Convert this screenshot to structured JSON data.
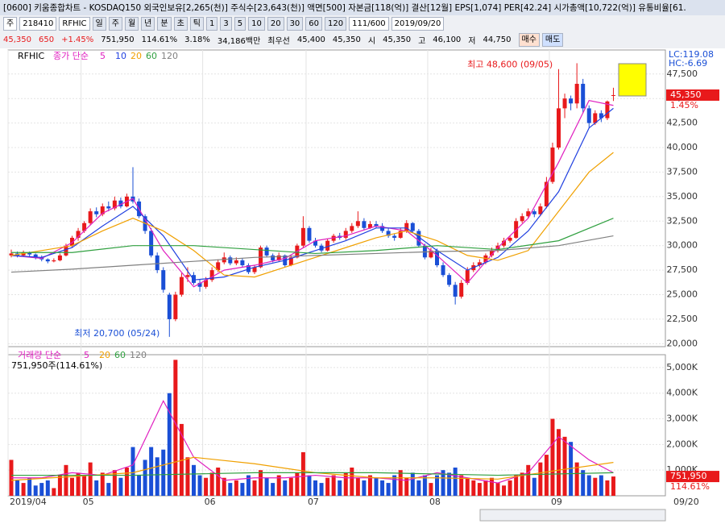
{
  "header": {
    "title": "[0600] 키움종합차트 - KOSDAQ150 외국인보유[2,265(천)] 주식수[23,643(천)] 액면[500] 자본금[118(억)] 결산[12월] EPS[1,074] PER[42.24] 시가총액[10,722(억)] 유통비율[61.",
    "toolbar": [
      "주",
      "218410",
      "RFHIC",
      "일",
      "주",
      "월",
      "년",
      "분",
      "초",
      "틱",
      "1",
      "3",
      "5",
      "10",
      "20",
      "30",
      "60",
      "120",
      "111/600",
      "2019/09/20"
    ],
    "quote": [
      "45,350",
      "650",
      "+1.45%",
      "751,950",
      "114.61%",
      "3.18%",
      "34,186백만",
      "최우선",
      "45,400",
      "45,350",
      "시",
      "45,350",
      "고",
      "46,100",
      "저",
      "44,750"
    ],
    "buttons": [
      "매수",
      "매도"
    ]
  },
  "chart_data": {
    "type": "candlestick",
    "title": "RFHIC",
    "ma_label": "종가 단순",
    "open": [
      29000,
      29200,
      29000,
      29300,
      29100,
      28800,
      28600,
      28400,
      28500,
      29000,
      30000,
      30800,
      31500,
      32300,
      33500,
      33200,
      34000,
      33800,
      34600,
      34000,
      35000,
      34500,
      33000,
      31500,
      29000,
      27500,
      25000,
      22500,
      25000,
      26800,
      27000,
      26200,
      25800,
      26500,
      27500,
      28300,
      28800,
      28200,
      28500,
      28000,
      27300,
      27800,
      29800,
      29000,
      28500,
      29000,
      28000,
      28800,
      30000,
      31800,
      30500,
      30000,
      29500,
      30500,
      31000,
      30800,
      31500,
      32000,
      32500,
      31800,
      32200,
      32000,
      31500,
      31000,
      30800,
      31500,
      32300,
      31500,
      30000,
      28800,
      29500,
      28000,
      27000,
      26000,
      24800,
      26200,
      27500,
      28000,
      28300,
      29000,
      29500,
      30000,
      30500,
      30800,
      32500,
      33000,
      33500,
      33200,
      34000,
      36500,
      40000,
      44000,
      45000,
      44500,
      46500,
      44000,
      42500,
      43500,
      43000,
      45350
    ],
    "high": [
      29600,
      29400,
      29500,
      29400,
      29200,
      29000,
      28700,
      28700,
      29200,
      30200,
      31000,
      31800,
      32500,
      33800,
      33900,
      34300,
      34500,
      35000,
      34900,
      35300,
      38000,
      34800,
      33200,
      31800,
      29300,
      27800,
      25200,
      25300,
      27200,
      27800,
      27300,
      26600,
      26800,
      27800,
      28600,
      29300,
      29000,
      28800,
      28700,
      28200,
      28000,
      30000,
      30000,
      29200,
      29300,
      29100,
      29000,
      30200,
      33000,
      32000,
      30800,
      30200,
      30700,
      31200,
      31300,
      31800,
      32300,
      33500,
      32800,
      32500,
      32500,
      32300,
      31800,
      31200,
      31800,
      32600,
      32400,
      31700,
      30200,
      29800,
      29700,
      28300,
      27200,
      26300,
      26500,
      27800,
      28300,
      28600,
      29200,
      29800,
      30300,
      30800,
      31000,
      32800,
      33300,
      33800,
      33700,
      34300,
      37000,
      40500,
      48000,
      45500,
      45300,
      48600,
      47000,
      44300,
      43800,
      43800,
      44800,
      46100
    ],
    "low": [
      28800,
      28800,
      28900,
      28900,
      28600,
      28400,
      28200,
      28300,
      28400,
      28900,
      29800,
      30500,
      31300,
      32100,
      32900,
      33000,
      33500,
      33600,
      33800,
      33900,
      34300,
      32800,
      31200,
      28800,
      27200,
      25200,
      20700,
      22300,
      24800,
      26300,
      26000,
      25300,
      25600,
      26300,
      27300,
      28100,
      28000,
      28000,
      27800,
      27100,
      27100,
      27700,
      28800,
      28300,
      28400,
      27800,
      27900,
      28700,
      29800,
      30300,
      29800,
      29300,
      29400,
      30300,
      30600,
      30600,
      31300,
      31800,
      31600,
      31700,
      31800,
      31300,
      30800,
      30500,
      30700,
      31300,
      31300,
      29800,
      28600,
      28700,
      27800,
      26800,
      25800,
      24000,
      24600,
      26000,
      27300,
      27800,
      28100,
      28800,
      29300,
      29800,
      30300,
      30700,
      32300,
      32800,
      32900,
      33000,
      33800,
      36300,
      39800,
      43000,
      43800,
      44000,
      43500,
      42000,
      42300,
      42600,
      42800,
      44750
    ],
    "close": [
      29200,
      29000,
      29300,
      29100,
      28800,
      28600,
      28400,
      28500,
      29000,
      30000,
      30800,
      31500,
      32300,
      33500,
      33200,
      34000,
      33800,
      34600,
      34000,
      35000,
      34500,
      33000,
      31500,
      29000,
      27500,
      25500,
      22500,
      25000,
      26800,
      27000,
      26200,
      25800,
      26500,
      27500,
      28300,
      28800,
      28200,
      28500,
      28000,
      27300,
      27800,
      29800,
      29000,
      28500,
      29000,
      28000,
      28800,
      30000,
      31800,
      30500,
      30000,
      29500,
      30500,
      31000,
      30800,
      31500,
      32000,
      32500,
      31800,
      32200,
      32000,
      31500,
      31000,
      30800,
      31500,
      32300,
      31500,
      30000,
      28800,
      29500,
      28000,
      27000,
      26000,
      24800,
      26200,
      27500,
      28000,
      28300,
      29000,
      29500,
      30000,
      30500,
      30800,
      32500,
      33000,
      33500,
      33200,
      34000,
      36500,
      40000,
      44000,
      45000,
      44500,
      46500,
      44000,
      42500,
      43500,
      43000,
      44700,
      45350
    ],
    "up_color": "#e8191b",
    "down_color": "#1a4fd6",
    "ma_series": [
      {
        "name": "5",
        "color": "#e020c0",
        "x": [
          0,
          5,
          10,
          15,
          20,
          25,
          30,
          35,
          40,
          45,
          50,
          55,
          60,
          65,
          70,
          75,
          80,
          85,
          90,
          95,
          99
        ],
        "values": [
          29000,
          28700,
          30300,
          33300,
          34800,
          29500,
          25800,
          27500,
          28000,
          28700,
          30500,
          31000,
          32000,
          31500,
          29000,
          26200,
          29800,
          32800,
          38500,
          44800,
          44300
        ]
      },
      {
        "name": "10",
        "color": "#2040e0",
        "x": [
          0,
          5,
          10,
          15,
          20,
          25,
          30,
          35,
          40,
          45,
          50,
          55,
          60,
          65,
          70,
          75,
          80,
          85,
          90,
          95,
          99
        ],
        "values": [
          29000,
          28800,
          29800,
          32000,
          34000,
          31000,
          26500,
          26800,
          27800,
          28500,
          29500,
          30500,
          31800,
          31800,
          29500,
          27500,
          28800,
          31500,
          35500,
          42000,
          44000
        ]
      },
      {
        "name": "20",
        "color": "#f0a000",
        "x": [
          0,
          5,
          10,
          15,
          20,
          25,
          30,
          35,
          40,
          45,
          50,
          55,
          60,
          65,
          70,
          75,
          80,
          85,
          90,
          95,
          99
        ],
        "values": [
          29000,
          29500,
          30000,
          31500,
          32800,
          31500,
          29500,
          27000,
          26800,
          27800,
          28800,
          29800,
          30800,
          31500,
          30500,
          29000,
          28500,
          29500,
          33500,
          37500,
          39500
        ]
      },
      {
        "name": "60",
        "color": "#30a040",
        "x": [
          0,
          10,
          20,
          30,
          40,
          50,
          60,
          70,
          80,
          90,
          99
        ],
        "values": [
          29300,
          29300,
          30000,
          30000,
          29600,
          29200,
          29500,
          30000,
          29600,
          30500,
          32800
        ]
      },
      {
        "name": "120",
        "color": "#808080",
        "x": [
          0,
          10,
          20,
          30,
          40,
          50,
          60,
          70,
          80,
          90,
          99
        ],
        "values": [
          27300,
          27600,
          28000,
          28400,
          28800,
          29000,
          29200,
          29400,
          29500,
          30000,
          31000
        ]
      }
    ],
    "ylim": [
      19700,
      49950
    ],
    "yticks": [
      {
        "value": 20000,
        "label": "20,000"
      },
      {
        "value": 22500,
        "label": "22,500"
      },
      {
        "value": 25000,
        "label": "25,000"
      },
      {
        "value": 27500,
        "label": "27,500"
      },
      {
        "value": 30000,
        "label": "30,000"
      },
      {
        "value": 32500,
        "label": "32,500"
      },
      {
        "value": 35000,
        "label": "35,000"
      },
      {
        "value": 37500,
        "label": "37,500"
      },
      {
        "value": 40000,
        "label": "40,000"
      },
      {
        "value": 42500,
        "label": "42,500"
      },
      {
        "value": 45000,
        "label": "45,000"
      },
      {
        "value": 47500,
        "label": "47,500"
      }
    ],
    "x_labels": [
      {
        "value": 0,
        "label": "2019/04"
      },
      {
        "value": 12,
        "label": "05"
      },
      {
        "value": 32,
        "label": "06"
      },
      {
        "value": 49,
        "label": "07"
      },
      {
        "value": 69,
        "label": "08"
      },
      {
        "value": 89,
        "label": "09"
      }
    ],
    "end_date": "09/20",
    "lc": "LC:119.08",
    "hc": "HC:-6.69",
    "last_label": "45,350",
    "change_label": "1.45%",
    "high_note": "최고 48,600 (09/05)",
    "low_note": "최저 20,700 (05/24)",
    "high_index": 93,
    "low_index": 26,
    "volume": {
      "label": "거래량 단순",
      "summary": "751,950주(114.61%)",
      "last_label": "751,950",
      "ratio_label": "114.61%",
      "values": [
        1400,
        600,
        500,
        700,
        400,
        500,
        600,
        300,
        800,
        1200,
        700,
        900,
        800,
        1300,
        600,
        900,
        500,
        1000,
        700,
        1100,
        1900,
        800,
        1400,
        1900,
        1500,
        1800,
        4000,
        5300,
        2800,
        1500,
        1200,
        800,
        700,
        900,
        1100,
        700,
        500,
        600,
        500,
        800,
        600,
        1000,
        700,
        500,
        800,
        600,
        700,
        900,
        1700,
        800,
        600,
        500,
        700,
        800,
        600,
        900,
        1100,
        700,
        600,
        800,
        700,
        600,
        500,
        800,
        1000,
        700,
        900,
        600,
        800,
        500,
        800,
        1000,
        900,
        1100,
        800,
        700,
        600,
        500,
        600,
        700,
        500,
        400,
        600,
        800,
        900,
        1200,
        700,
        1300,
        1600,
        3000,
        2600,
        2300,
        2100,
        1300,
        1000,
        800,
        700,
        800,
        600,
        751.95
      ],
      "ylim": [
        0,
        5500
      ],
      "yticks": [
        {
          "value": 1000,
          "label": "1,000K"
        },
        {
          "value": 2000,
          "label": "2,000K"
        },
        {
          "value": 3000,
          "label": "3,000K"
        },
        {
          "value": 4000,
          "label": "4,000K"
        },
        {
          "value": 5000,
          "label": "5,000K"
        }
      ],
      "ma_series": [
        {
          "name": "5",
          "color": "#e020c0",
          "x": [
            0,
            5,
            10,
            15,
            20,
            25,
            30,
            35,
            40,
            45,
            50,
            55,
            60,
            65,
            70,
            75,
            80,
            85,
            90,
            95,
            99
          ],
          "values": [
            700,
            700,
            900,
            800,
            1200,
            3700,
            1500,
            600,
            700,
            700,
            800,
            700,
            700,
            600,
            900,
            700,
            500,
            900,
            2300,
            1400,
            900
          ]
        },
        {
          "name": "20",
          "color": "#f0a000",
          "x": [
            0,
            10,
            20,
            30,
            40,
            50,
            60,
            70,
            80,
            90,
            99
          ],
          "values": [
            600,
            750,
            900,
            1500,
            1250,
            900,
            700,
            700,
            650,
            1000,
            1300
          ]
        },
        {
          "name": "60",
          "color": "#30a040",
          "x": [
            0,
            20,
            40,
            60,
            80,
            99
          ],
          "values": [
            800,
            800,
            900,
            900,
            800,
            900
          ]
        },
        {
          "name": "120",
          "color": "#808080",
          "x": [],
          "values": []
        }
      ]
    }
  }
}
